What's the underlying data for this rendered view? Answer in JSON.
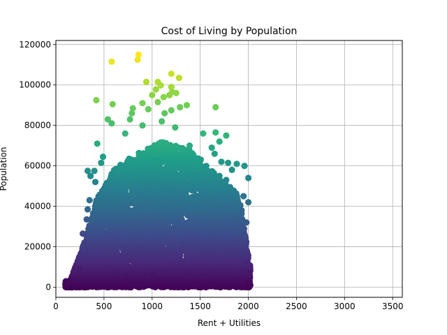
{
  "chart_data": {
    "type": "scatter",
    "title": "Cost of Living by Population",
    "xlabel": "Rent + Utilities",
    "ylabel": "Population",
    "xlim": [
      0,
      3600
    ],
    "ylim": [
      -5000,
      122000
    ],
    "xticks": [
      0,
      500,
      1000,
      1500,
      2000,
      2500,
      3000,
      3500
    ],
    "yticks": [
      0,
      20000,
      40000,
      60000,
      80000,
      100000,
      120000
    ],
    "grid": true,
    "colormap": "viridis",
    "color_by": "y",
    "color_range": [
      0,
      115000
    ],
    "dense_region": {
      "x_range": [
        100,
        2020
      ],
      "note_color": "bulk density"
    },
    "points": [
      {
        "x": 580,
        "y": 111500
      },
      {
        "x": 860,
        "y": 115000
      },
      {
        "x": 850,
        "y": 112500
      },
      {
        "x": 1200,
        "y": 105500
      },
      {
        "x": 1280,
        "y": 103500
      },
      {
        "x": 940,
        "y": 101500
      },
      {
        "x": 1060,
        "y": 101500
      },
      {
        "x": 1090,
        "y": 99800
      },
      {
        "x": 1200,
        "y": 99000
      },
      {
        "x": 1040,
        "y": 97800
      },
      {
        "x": 1210,
        "y": 96500
      },
      {
        "x": 1000,
        "y": 95000
      },
      {
        "x": 1180,
        "y": 95000
      },
      {
        "x": 1250,
        "y": 96000
      },
      {
        "x": 1120,
        "y": 94000
      },
      {
        "x": 420,
        "y": 92500
      },
      {
        "x": 590,
        "y": 90500
      },
      {
        "x": 900,
        "y": 91000
      },
      {
        "x": 1060,
        "y": 91500
      },
      {
        "x": 1290,
        "y": 89000
      },
      {
        "x": 1360,
        "y": 90000
      },
      {
        "x": 1660,
        "y": 89000
      },
      {
        "x": 800,
        "y": 88500
      },
      {
        "x": 960,
        "y": 88000
      },
      {
        "x": 1200,
        "y": 87500
      },
      {
        "x": 790,
        "y": 86000
      },
      {
        "x": 1130,
        "y": 86000
      },
      {
        "x": 540,
        "y": 83000
      },
      {
        "x": 770,
        "y": 83000
      },
      {
        "x": 580,
        "y": 81000
      },
      {
        "x": 900,
        "y": 80000
      },
      {
        "x": 1240,
        "y": 79000
      },
      {
        "x": 1100,
        "y": 82000
      },
      {
        "x": 1530,
        "y": 76000
      },
      {
        "x": 1660,
        "y": 76500
      },
      {
        "x": 1770,
        "y": 75000
      },
      {
        "x": 720,
        "y": 76000
      },
      {
        "x": 430,
        "y": 71000
      },
      {
        "x": 1700,
        "y": 72000
      },
      {
        "x": 1390,
        "y": 70000
      },
      {
        "x": 1620,
        "y": 69000
      },
      {
        "x": 1790,
        "y": 61500
      },
      {
        "x": 1880,
        "y": 61000
      },
      {
        "x": 1960,
        "y": 60000
      },
      {
        "x": 1650,
        "y": 66000
      },
      {
        "x": 1720,
        "y": 62000
      },
      {
        "x": 1830,
        "y": 58000
      },
      {
        "x": 2000,
        "y": 54000
      },
      {
        "x": 1950,
        "y": 45000
      },
      {
        "x": 1930,
        "y": 38000
      },
      {
        "x": 2000,
        "y": 42000
      },
      {
        "x": 1980,
        "y": 32000
      },
      {
        "x": 1920,
        "y": 30000
      },
      {
        "x": 1880,
        "y": 22000
      },
      {
        "x": 1850,
        "y": 33000
      },
      {
        "x": 1800,
        "y": 40000
      },
      {
        "x": 1750,
        "y": 46000
      },
      {
        "x": 1770,
        "y": 53000
      },
      {
        "x": 1700,
        "y": 55000
      },
      {
        "x": 330,
        "y": 57500
      },
      {
        "x": 400,
        "y": 57500
      },
      {
        "x": 360,
        "y": 55000
      },
      {
        "x": 410,
        "y": 52000
      },
      {
        "x": 470,
        "y": 61500
      },
      {
        "x": 490,
        "y": 64500
      },
      {
        "x": 500,
        "y": 48500
      },
      {
        "x": 350,
        "y": 43000
      },
      {
        "x": 330,
        "y": 38500
      },
      {
        "x": 320,
        "y": 33500
      },
      {
        "x": 300,
        "y": 22000
      },
      {
        "x": 280,
        "y": 26500
      },
      {
        "x": 200,
        "y": 9500
      },
      {
        "x": 250,
        "y": 9000
      },
      {
        "x": 150,
        "y": 3500
      },
      {
        "x": 120,
        "y": 2000
      },
      {
        "x": 2000,
        "y": 7000
      },
      {
        "x": 2000,
        "y": 2000
      },
      {
        "x": 1980,
        "y": 12000
      }
    ]
  }
}
